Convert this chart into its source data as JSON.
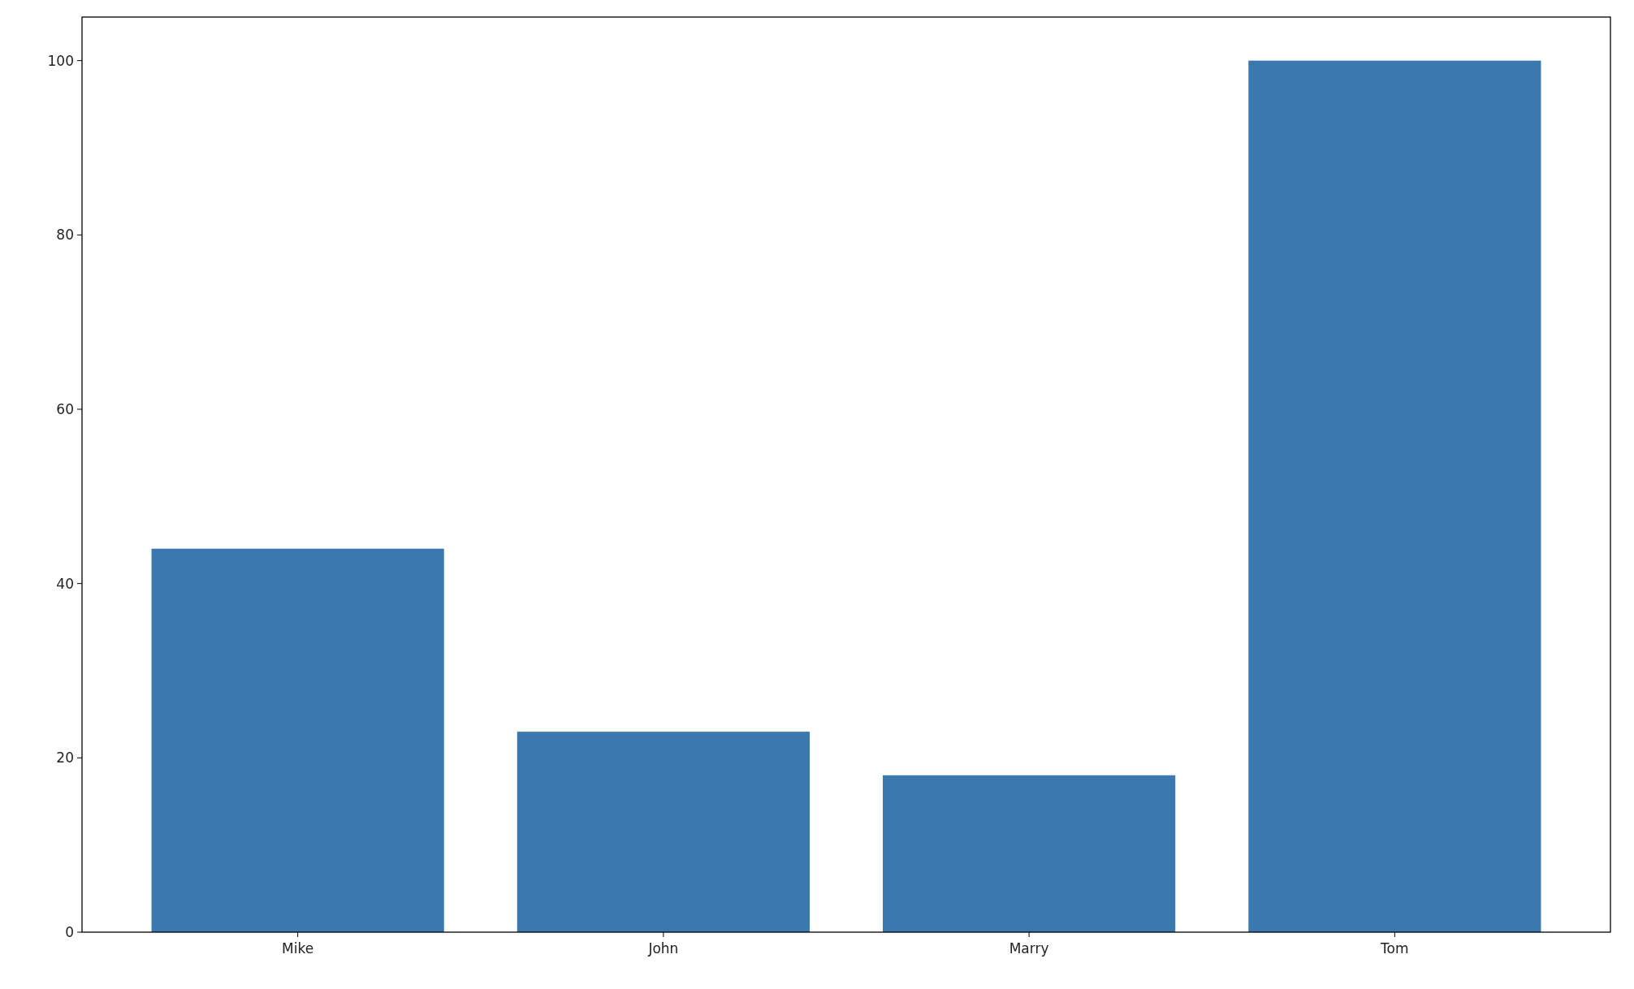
{
  "chart_data": {
    "type": "bar",
    "categories": [
      "Mike",
      "John",
      "Marry",
      "Tom"
    ],
    "values": [
      44,
      23,
      18,
      100
    ],
    "color": "#3a78ad",
    "ylim": [
      0,
      105
    ],
    "yticks": [
      0,
      20,
      40,
      60,
      80,
      100
    ],
    "grid": false
  }
}
